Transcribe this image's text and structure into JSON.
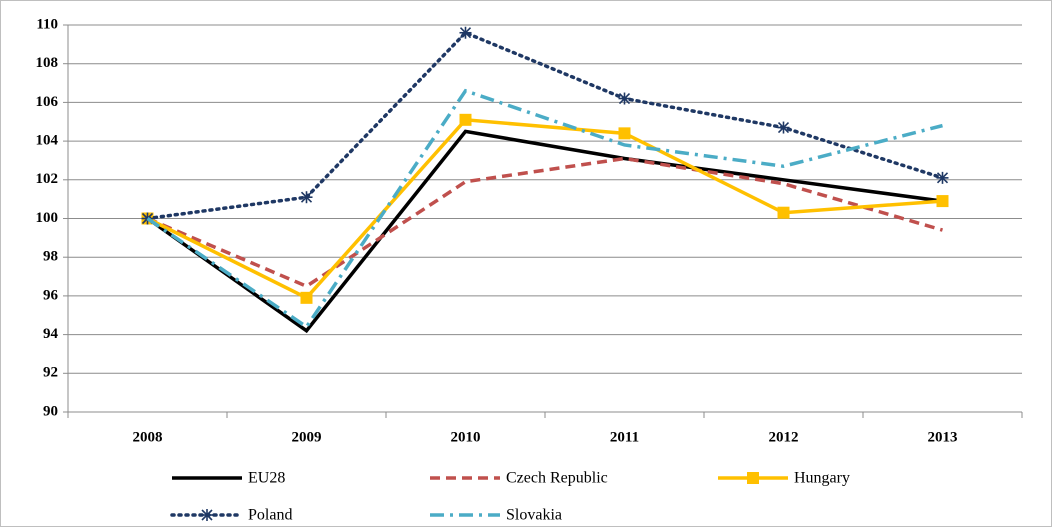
{
  "chart_data": {
    "type": "line",
    "categories": [
      "2008",
      "2009",
      "2010",
      "2011",
      "2012",
      "2013"
    ],
    "series": [
      {
        "name": "EU28",
        "color": "#000000",
        "dash": "solid",
        "marker": "none",
        "values": [
          100,
          94.2,
          104.5,
          103.1,
          102.0,
          100.9
        ]
      },
      {
        "name": "Czech Republic",
        "color": "#c0504d",
        "dash": "dashed",
        "marker": "none",
        "values": [
          100,
          96.5,
          101.9,
          103.1,
          101.8,
          99.4
        ]
      },
      {
        "name": "Hungary",
        "color": "#ffc000",
        "dash": "solid",
        "marker": "square",
        "values": [
          100,
          95.9,
          105.1,
          104.4,
          100.3,
          100.9
        ]
      },
      {
        "name": "Poland",
        "color": "#1f3864",
        "dash": "dotted",
        "marker": "asterisk",
        "values": [
          100,
          101.1,
          109.6,
          106.2,
          104.7,
          102.1
        ]
      },
      {
        "name": "Slovakia",
        "color": "#4bacc6",
        "dash": "dashdot",
        "marker": "none",
        "values": [
          100,
          94.4,
          106.6,
          103.8,
          102.7,
          104.8
        ]
      }
    ],
    "ylim": [
      90,
      110
    ],
    "yticks": [
      90,
      92,
      94,
      96,
      98,
      100,
      102,
      104,
      106,
      108,
      110
    ],
    "grid": true,
    "legend": "bottom"
  }
}
